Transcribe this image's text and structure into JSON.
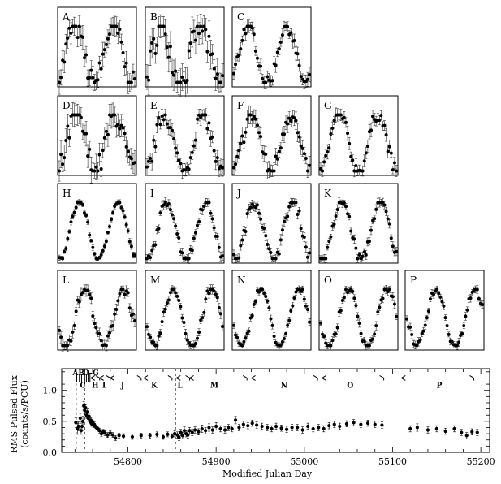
{
  "chart_data": [
    {
      "type": "scatter",
      "role": "pulse-profile-grid",
      "panel_labels": [
        "A",
        "B",
        "C",
        "D",
        "E",
        "F",
        "G",
        "H",
        "I",
        "J",
        "K",
        "L",
        "M",
        "N",
        "O",
        "P"
      ],
      "profile_cycles": 2,
      "panels": [
        {
          "label": "A",
          "phase_offset": 0.1,
          "noise": 0.2
        },
        {
          "label": "B",
          "phase_offset": 0.12,
          "noise": 0.25
        },
        {
          "label": "C",
          "phase_offset": 0.13,
          "noise": 0.12
        },
        {
          "label": "D",
          "phase_offset": 0.06,
          "noise": 0.22
        },
        {
          "label": "E",
          "phase_offset": 0.05,
          "noise": 0.14
        },
        {
          "label": "F",
          "phase_offset": 0.04,
          "noise": 0.16
        },
        {
          "label": "G",
          "phase_offset": 0.02,
          "noise": 0.12
        },
        {
          "label": "H",
          "phase_offset": -0.02,
          "noise": 0.05
        },
        {
          "label": "I",
          "phase_offset": -0.02,
          "noise": 0.08
        },
        {
          "label": "J",
          "phase_offset": -0.03,
          "noise": 0.09
        },
        {
          "label": "K",
          "phase_offset": -0.05,
          "noise": 0.08
        },
        {
          "label": "L",
          "phase_offset": -0.16,
          "noise": 0.1
        },
        {
          "label": "M",
          "phase_offset": -0.18,
          "noise": 0.08
        },
        {
          "label": "N",
          "phase_offset": -0.2,
          "noise": 0.06
        },
        {
          "label": "O",
          "phase_offset": -0.22,
          "noise": 0.07
        },
        {
          "label": "P",
          "phase_offset": -0.26,
          "noise": 0.07
        }
      ]
    },
    {
      "type": "scatter",
      "role": "pulsed-flux-history",
      "xlabel": "Modified Julian Day",
      "ylabel_line1": "RMS Pulsed Flux",
      "ylabel_line2": "(counts/s/PCU)",
      "xlim": [
        54725,
        55210
      ],
      "ylim": [
        0,
        1.35
      ],
      "xticks": [
        54800,
        54900,
        55000,
        55100,
        55200
      ],
      "yticks": [
        0.0,
        0.5,
        1.0
      ],
      "ytick_labels": [
        "0.0",
        "0.5",
        "1.0"
      ],
      "dashed_lines_x": [
        54741.5,
        54751,
        54854
      ],
      "segments": [
        {
          "label": "A",
          "x1": 54741,
          "x2": 54743,
          "single": true
        },
        {
          "label": "B",
          "x1": 54744,
          "x2": 54746,
          "single": true
        },
        {
          "label": "C",
          "x1": 54746,
          "x2": 54749,
          "single": true
        },
        {
          "label": "D",
          "x1": 54750,
          "x2": 54752,
          "single": true
        },
        {
          "label": "E",
          "x1": 54752,
          "x2": 54754,
          "single": true
        },
        {
          "label": "F",
          "x1": 54754,
          "x2": 54756,
          "single": true
        },
        {
          "label": "G",
          "x1": 54756,
          "x2": 54758,
          "single": true
        },
        {
          "label": "H",
          "x1": 54758,
          "x2": 54768
        },
        {
          "label": "I",
          "x1": 54768,
          "x2": 54780
        },
        {
          "label": "J",
          "x1": 54780,
          "x2": 54815
        },
        {
          "label": "K",
          "x1": 54818,
          "x2": 54850
        },
        {
          "label": "L",
          "x1": 54855,
          "x2": 54870
        },
        {
          "label": "M",
          "x1": 54870,
          "x2": 54935
        },
        {
          "label": "N",
          "x1": 54940,
          "x2": 55015
        },
        {
          "label": "O",
          "x1": 55020,
          "x2": 55090
        },
        {
          "label": "P",
          "x1": 55110,
          "x2": 55192
        }
      ],
      "top_labels": [
        {
          "text": "AB",
          "x": 54744
        },
        {
          "text": "D–G",
          "x": 54758
        },
        {
          "text": "C",
          "x": 54749
        },
        {
          "text": "H",
          "x": 54763
        },
        {
          "text": "I",
          "x": 54773
        },
        {
          "text": "J",
          "x": 54794
        },
        {
          "text": "K",
          "x": 54830
        },
        {
          "text": "L",
          "x": 54859
        },
        {
          "text": "M",
          "x": 54898
        },
        {
          "text": "N",
          "x": 54977
        },
        {
          "text": "O",
          "x": 55052
        },
        {
          "text": "P",
          "x": 55153
        }
      ],
      "points": [
        [
          54741,
          0.48,
          0.08
        ],
        [
          54743,
          0.38,
          0.09
        ],
        [
          54744,
          0.42,
          0.07
        ],
        [
          54746,
          0.55,
          0.08
        ],
        [
          54747,
          0.35,
          0.06
        ],
        [
          54748,
          0.42,
          0.07
        ],
        [
          54749,
          0.5,
          0.08
        ],
        [
          54750,
          0.75,
          0.07
        ],
        [
          54751,
          0.68,
          0.06
        ],
        [
          54752,
          0.72,
          0.05
        ],
        [
          54753,
          0.6,
          0.05
        ],
        [
          54754,
          0.65,
          0.05
        ],
        [
          54755,
          0.55,
          0.05
        ],
        [
          54756,
          0.58,
          0.05
        ],
        [
          54757,
          0.5,
          0.04
        ],
        [
          54758,
          0.52,
          0.04
        ],
        [
          54759,
          0.46,
          0.04
        ],
        [
          54760,
          0.48,
          0.04
        ],
        [
          54761,
          0.44,
          0.04
        ],
        [
          54762,
          0.45,
          0.04
        ],
        [
          54764,
          0.4,
          0.04
        ],
        [
          54766,
          0.38,
          0.04
        ],
        [
          54768,
          0.35,
          0.04
        ],
        [
          54770,
          0.3,
          0.04
        ],
        [
          54772,
          0.33,
          0.04
        ],
        [
          54774,
          0.31,
          0.04
        ],
        [
          54777,
          0.28,
          0.04
        ],
        [
          54780,
          0.31,
          0.04
        ],
        [
          54783,
          0.28,
          0.04
        ],
        [
          54786,
          0.23,
          0.04
        ],
        [
          54790,
          0.27,
          0.04
        ],
        [
          54795,
          0.26,
          0.04
        ],
        [
          54805,
          0.25,
          0.04
        ],
        [
          54815,
          0.27,
          0.04
        ],
        [
          54825,
          0.27,
          0.04
        ],
        [
          54833,
          0.29,
          0.04
        ],
        [
          54840,
          0.25,
          0.04
        ],
        [
          54845,
          0.29,
          0.04
        ],
        [
          54850,
          0.26,
          0.04
        ],
        [
          54853,
          0.3,
          0.05
        ],
        [
          54856,
          0.28,
          0.05
        ],
        [
          54858,
          0.24,
          0.05
        ],
        [
          54860,
          0.32,
          0.05
        ],
        [
          54862,
          0.27,
          0.05
        ],
        [
          54864,
          0.35,
          0.06
        ],
        [
          54866,
          0.3,
          0.05
        ],
        [
          54868,
          0.28,
          0.05
        ],
        [
          54870,
          0.35,
          0.05
        ],
        [
          54873,
          0.32,
          0.05
        ],
        [
          54876,
          0.36,
          0.05
        ],
        [
          54880,
          0.33,
          0.05
        ],
        [
          54884,
          0.38,
          0.06
        ],
        [
          54888,
          0.35,
          0.05
        ],
        [
          54892,
          0.4,
          0.06
        ],
        [
          54896,
          0.36,
          0.05
        ],
        [
          54900,
          0.42,
          0.06
        ],
        [
          54905,
          0.38,
          0.05
        ],
        [
          54910,
          0.36,
          0.05
        ],
        [
          54914,
          0.4,
          0.05
        ],
        [
          54918,
          0.38,
          0.05
        ],
        [
          54922,
          0.52,
          0.06
        ],
        [
          54926,
          0.4,
          0.05
        ],
        [
          54931,
          0.45,
          0.05
        ],
        [
          54936,
          0.43,
          0.05
        ],
        [
          54941,
          0.47,
          0.05
        ],
        [
          54946,
          0.44,
          0.05
        ],
        [
          54952,
          0.42,
          0.05
        ],
        [
          54958,
          0.4,
          0.05
        ],
        [
          54963,
          0.38,
          0.05
        ],
        [
          54968,
          0.42,
          0.05
        ],
        [
          54974,
          0.39,
          0.05
        ],
        [
          54980,
          0.37,
          0.05
        ],
        [
          54986,
          0.4,
          0.05
        ],
        [
          54992,
          0.4,
          0.05
        ],
        [
          54998,
          0.36,
          0.05
        ],
        [
          55004,
          0.42,
          0.05
        ],
        [
          55010,
          0.38,
          0.05
        ],
        [
          55016,
          0.4,
          0.05
        ],
        [
          55022,
          0.38,
          0.05
        ],
        [
          55028,
          0.43,
          0.05
        ],
        [
          55034,
          0.45,
          0.05
        ],
        [
          55040,
          0.42,
          0.05
        ],
        [
          55048,
          0.46,
          0.05
        ],
        [
          55056,
          0.48,
          0.05
        ],
        [
          55064,
          0.45,
          0.05
        ],
        [
          55072,
          0.47,
          0.05
        ],
        [
          55080,
          0.45,
          0.05
        ],
        [
          55088,
          0.44,
          0.05
        ],
        [
          55120,
          0.38,
          0.05
        ],
        [
          55128,
          0.4,
          0.06
        ],
        [
          55140,
          0.36,
          0.05
        ],
        [
          55150,
          0.38,
          0.05
        ],
        [
          55160,
          0.34,
          0.05
        ],
        [
          55170,
          0.38,
          0.05
        ],
        [
          55178,
          0.32,
          0.05
        ],
        [
          55184,
          0.27,
          0.05
        ],
        [
          55190,
          0.33,
          0.05
        ],
        [
          55196,
          0.32,
          0.05
        ]
      ]
    }
  ]
}
